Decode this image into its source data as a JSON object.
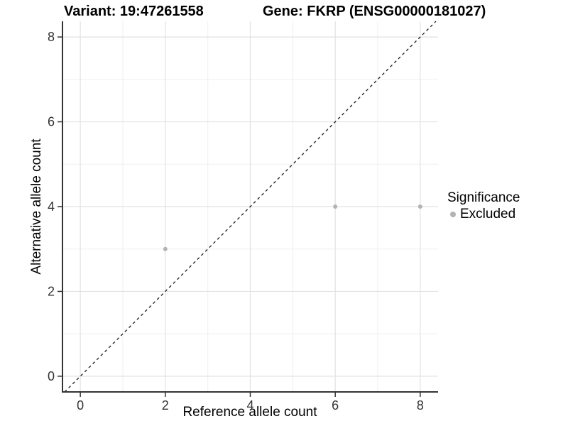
{
  "chart_data": {
    "type": "scatter",
    "title_left": "Variant: 19:47261558",
    "title_right": "Gene: FKRP (ENSG00000181027)",
    "xlabel": "Reference allele count",
    "ylabel": "Alternative allele count",
    "xlim": [
      -0.42,
      8.42
    ],
    "ylim": [
      -0.37,
      8.37
    ],
    "x_ticks": [
      0,
      2,
      4,
      6,
      8
    ],
    "y_ticks": [
      0,
      2,
      4,
      6,
      8
    ],
    "x_minor_ticks": [
      1,
      3,
      5,
      7
    ],
    "y_minor_ticks": [
      1,
      3,
      5,
      7
    ],
    "grid": "on",
    "legend": {
      "title": "Significance",
      "position": "right",
      "items": [
        {
          "label": "Excluded",
          "color": "#b3b3b3"
        }
      ]
    },
    "series": [
      {
        "name": "Excluded",
        "color": "#b3b3b3",
        "marker_radius": 3,
        "points": [
          [
            2,
            3
          ],
          [
            6,
            4
          ],
          [
            8,
            4
          ]
        ]
      }
    ],
    "identity_line": {
      "show": true,
      "style": "dashed",
      "color": "#1a1a1a"
    },
    "colors": {
      "axis": "#333333",
      "tick_text": "#333333",
      "grid_major": "#e2e2e2",
      "grid_minor": "#efefef",
      "background": "#ffffff"
    }
  }
}
